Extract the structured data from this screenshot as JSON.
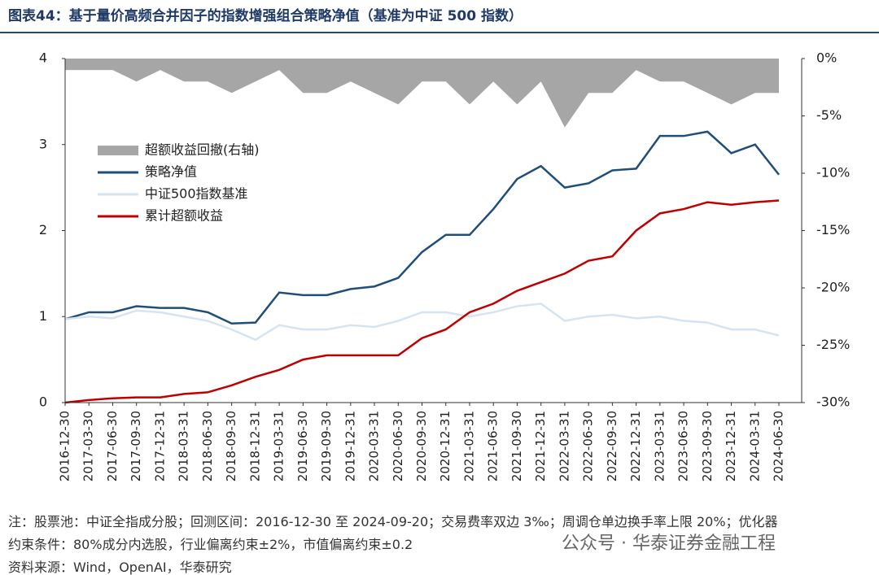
{
  "header": {
    "title": "图表44：基于量价高频合并因子的指数增强组合策略净值（基准为中证 500 指数）"
  },
  "chart_data": {
    "type": "line",
    "categories": [
      "2016-12-30",
      "2017-03-30",
      "2017-06-30",
      "2017-09-30",
      "2017-12-31",
      "2018-03-31",
      "2018-06-30",
      "2018-09-30",
      "2018-12-31",
      "2019-03-31",
      "2019-06-30",
      "2019-09-30",
      "2019-12-31",
      "2020-03-31",
      "2020-06-30",
      "2020-09-30",
      "2020-12-31",
      "2021-03-31",
      "2021-06-30",
      "2021-09-30",
      "2021-12-31",
      "2022-03-31",
      "2022-06-30",
      "2022-09-30",
      "2022-12-31",
      "2023-03-31",
      "2023-06-30",
      "2023-09-30",
      "2023-12-31",
      "2024-03-31",
      "2024-06-30"
    ],
    "series": [
      {
        "name": "超额收益回撤(右轴)",
        "type": "area",
        "axis": "y2",
        "color": "#a6a6a6",
        "values": [
          -1,
          -1,
          -1,
          -2,
          -1,
          -2,
          -2,
          -3,
          -2,
          -1,
          -3,
          -3,
          -2,
          -3,
          -4,
          -2,
          -2,
          -4,
          -2,
          -4,
          -2,
          -6,
          -3,
          -3,
          -1,
          -2,
          -2,
          -3,
          -4,
          -3,
          -3
        ]
      },
      {
        "name": "策略净值",
        "color": "#1f4e79",
        "values": [
          0.97,
          1.05,
          1.05,
          1.12,
          1.1,
          1.1,
          1.05,
          0.92,
          0.93,
          1.28,
          1.25,
          1.25,
          1.32,
          1.35,
          1.45,
          1.75,
          1.95,
          1.95,
          2.25,
          2.6,
          2.75,
          2.5,
          2.55,
          2.7,
          2.72,
          3.1,
          3.1,
          3.15,
          2.9,
          3.0,
          2.65
        ]
      },
      {
        "name": "中证500指数基准",
        "color": "#d6e4f2",
        "values": [
          0.97,
          1.0,
          0.98,
          1.07,
          1.05,
          1.0,
          0.95,
          0.85,
          0.73,
          0.9,
          0.85,
          0.85,
          0.9,
          0.88,
          0.95,
          1.05,
          1.05,
          1.0,
          1.05,
          1.12,
          1.15,
          0.95,
          1.0,
          1.02,
          0.98,
          1.0,
          0.95,
          0.93,
          0.85,
          0.85,
          0.78
        ]
      },
      {
        "name": "累计超额收益",
        "color": "#c00000",
        "values": [
          0,
          0.03,
          0.05,
          0.06,
          0.06,
          0.1,
          0.12,
          0.2,
          0.3,
          0.38,
          0.5,
          0.55,
          0.55,
          0.55,
          0.55,
          0.75,
          0.85,
          1.05,
          1.15,
          1.3,
          1.4,
          1.5,
          1.65,
          1.7,
          2.0,
          2.2,
          2.25,
          2.33,
          2.3,
          2.33,
          2.35
        ]
      }
    ],
    "ylim": [
      0,
      4
    ],
    "yticks": [
      0,
      1,
      2,
      3,
      4
    ],
    "y2lim": [
      -30,
      0
    ],
    "y2ticks": [
      {
        "value": 0,
        "label": "0%"
      },
      {
        "value": -5,
        "label": "-5%"
      },
      {
        "value": -10,
        "label": "-10%"
      },
      {
        "value": -15,
        "label": "-15%"
      },
      {
        "value": -20,
        "label": "-20%"
      },
      {
        "value": -25,
        "label": "-25%"
      },
      {
        "value": -30,
        "label": "-30%"
      }
    ],
    "grid": false,
    "legend": "upper left"
  },
  "notes": [
    "注：股票池：中证全指成分股；回测区间：2016-12-30 至 2024-09-20；交易费率双边 3‰；周调仓单边换手率上限 20%；优化器",
    "约束条件：80%成分内选股，行业偏离约束±2%，市值偏离约束±0.2",
    "资料来源：Wind，OpenAI，华泰研究"
  ],
  "watermark": "公众号 · 华泰证券金融工程"
}
